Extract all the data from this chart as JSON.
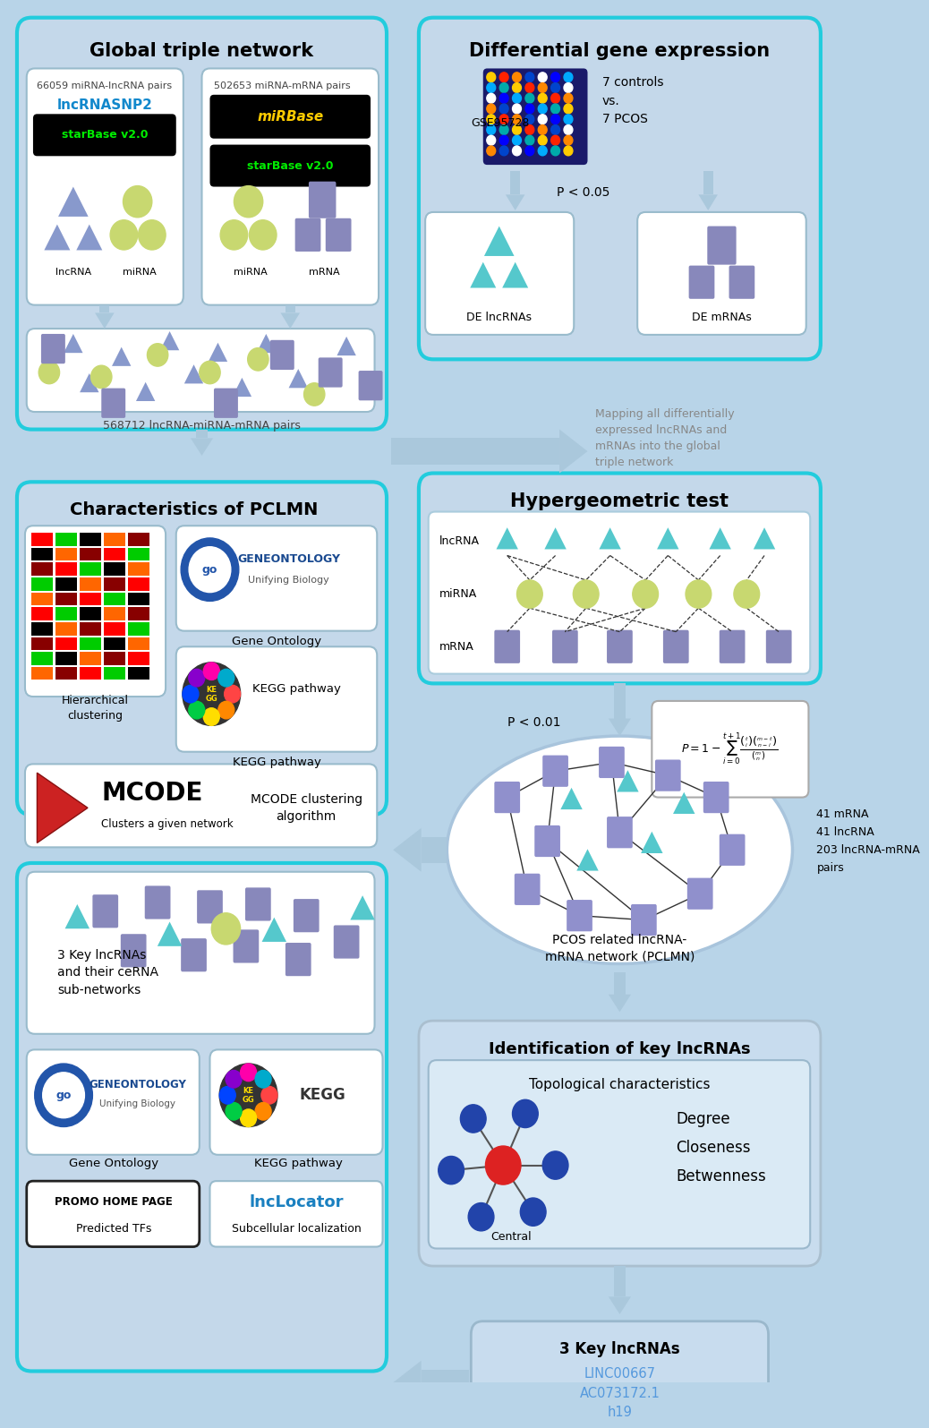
{
  "bg_color": "#b8d4e8",
  "section1_title": "Global triple network",
  "section2_title": "Differential gene expression",
  "section3_title": "Hypergeometric test",
  "section4_title": "Characteristics of PCLMN",
  "section5_title": "Identification of key lncRNAs",
  "pairs1": "66059 miRNA-lncRNA pairs",
  "pairs2": "502653 miRNA-mRNA pairs",
  "pairs3": "568712 lncRNA-miRNA-mRNA pairs",
  "gse_label": "GSE95728",
  "controls_text": "7 controls\nvs.\n7 PCOS",
  "pvalue1": "P < 0.05",
  "pvalue2": "P < 0.01",
  "de_lncrna": "DE lncRNAs",
  "de_mrna": "DE mRNAs",
  "mapping_text": "Mapping all differentially\nexpressed lncRNAs and\nmRNAs into the global\ntriple network",
  "network_label": "PCOS related lncRNA-\nmRNA network (PCLMN)",
  "network_stats": "41 mRNA\n41 lncRNA\n203 lncRNA-mRNA\npairs",
  "hier_clust": "Hierarchical\nclustering",
  "gene_ontology": "Gene Ontology",
  "kegg_pathway": "KEGG pathway",
  "mcode_title": "MCODE",
  "mcode_sub": "Clusters a given network",
  "mcode_algo": "MCODE clustering\nalgorithm",
  "topo_title": "Topological characteristics",
  "topo_items": "Degree\nCloseness\nBetwenness",
  "linc": "LINC00667",
  "ac": "AC073172.1",
  "h19": "h19",
  "bottom_left1": "3 Key lncRNAs\nand their ceRNA\nsub-networks",
  "predicted_tfs": "Predicted TFs",
  "subcellular": "Subcellular localization",
  "promo": "PROMO HOME PAGE",
  "lnclocator": "lncLocator",
  "lncrna_tri_color": "#8899cc",
  "mirna_circ_color": "#c8d870",
  "mrna_rect_color": "#8888bb",
  "cyan_tri_color": "#55c8cc",
  "arrow_color": "#aac8dc"
}
